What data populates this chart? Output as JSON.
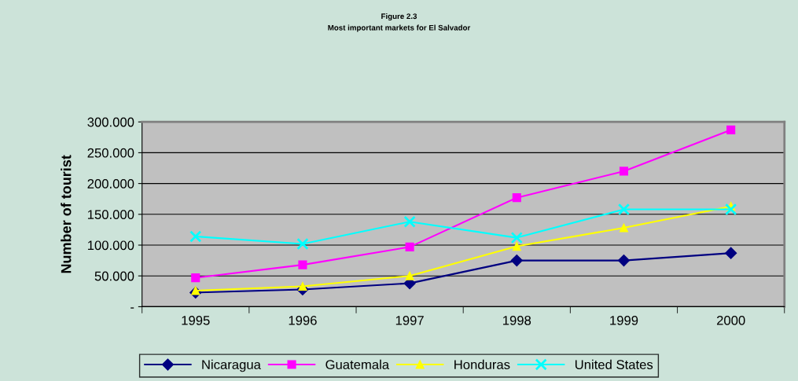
{
  "chart_data": {
    "type": "line",
    "title": "Figure 2.3",
    "subtitle": "Most important markets for El Salvador",
    "ylabel": "Number of tourist",
    "categories": [
      "1995",
      "1996",
      "1997",
      "1998",
      "1999",
      "2000"
    ],
    "series": [
      {
        "name": "Nicaragua",
        "color": "#000080",
        "marker": "diamond",
        "values": [
          23,
          28,
          38,
          75,
          75,
          87
        ]
      },
      {
        "name": "Guatemala",
        "color": "#ff00ff",
        "marker": "square",
        "values": [
          47,
          68,
          97,
          177,
          220,
          287
        ]
      },
      {
        "name": "Honduras",
        "color": "#ffff00",
        "marker": "triangle",
        "values": [
          26,
          33,
          50,
          98,
          128,
          163
        ]
      },
      {
        "name": "United States",
        "color": "#00ffff",
        "marker": "cross",
        "values": [
          114,
          102,
          138,
          112,
          158,
          158
        ]
      }
    ],
    "ylim": [
      0,
      300
    ],
    "yticks": [
      {
        "value": 0,
        "label": "-"
      },
      {
        "value": 50,
        "label": "50.000"
      },
      {
        "value": 100,
        "label": "100.000"
      },
      {
        "value": 150,
        "label": "150.000"
      },
      {
        "value": 200,
        "label": "200.000"
      },
      {
        "value": 250,
        "label": "250.000"
      },
      {
        "value": 300,
        "label": "300.000"
      }
    ],
    "grid": "y",
    "legend": "bottom",
    "line_style": "solid"
  }
}
